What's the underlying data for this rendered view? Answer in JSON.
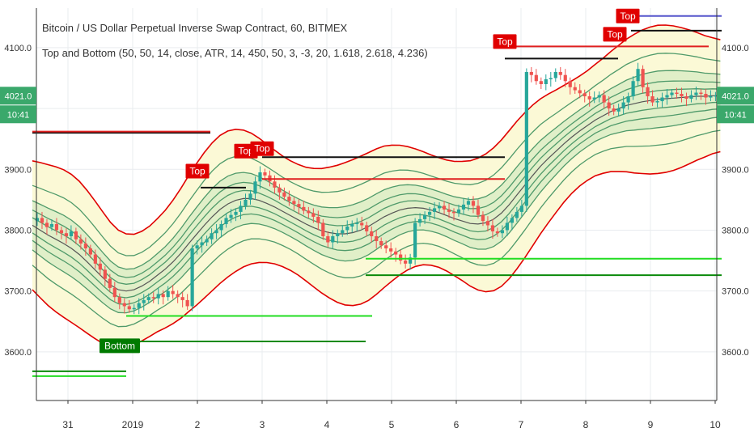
{
  "chart_data": {
    "type": "candlestick",
    "title": "Bitcoin / US Dollar Perpetual Inverse Swap Contract, 60, BITMEX",
    "subtitle": "Top and Bottom (50, 50, 14, close, ATR, 14, 450, 50, 3, -3, 20, 1.618, 2.618, 4.236)",
    "x_labels": [
      "31",
      "2019",
      "2",
      "3",
      "4",
      "5",
      "6",
      "7",
      "8",
      "9",
      "10"
    ],
    "y_ticks": [
      3600,
      3700,
      3800,
      3900,
      4000,
      4100
    ],
    "y_tick_labels": [
      "3600.0",
      "3700.0",
      "3800.0",
      "3900.0",
      "4000.0",
      "4100.0"
    ],
    "ylim": [
      3520,
      4165
    ],
    "price_label": "4021.0",
    "time_label": "10:41",
    "grid": true,
    "signals": [
      {
        "label": "Top",
        "x": 2.0,
        "y": 3885,
        "color": "#e00000"
      },
      {
        "label": "Top",
        "x": 2.75,
        "y": 3918,
        "color": "#e00000"
      },
      {
        "label": "Top",
        "x": 3.0,
        "y": 3922,
        "color": "#e00000"
      },
      {
        "label": "Top",
        "x": 6.75,
        "y": 4098,
        "color": "#e00000"
      },
      {
        "label": "Top",
        "x": 8.45,
        "y": 4110,
        "color": "#e00000"
      },
      {
        "label": "Top",
        "x": 8.65,
        "y": 4140,
        "color": "#e00000"
      },
      {
        "label": "Bottom",
        "x": 0.8,
        "y": 3598,
        "color": "#007a00"
      }
    ],
    "levels": [
      {
        "color": "#111111",
        "y": 3960,
        "x1": -0.55,
        "x2": 2.2
      },
      {
        "color": "#e02020",
        "y": 3962,
        "x1": -0.55,
        "x2": 2.2
      },
      {
        "color": "#111111",
        "y": 3870,
        "x1": 2.05,
        "x2": 2.75
      },
      {
        "color": "#111111",
        "y": 3920,
        "x1": 3.0,
        "x2": 6.75
      },
      {
        "color": "#e02020",
        "y": 3884,
        "x1": 3.0,
        "x2": 6.75
      },
      {
        "color": "#111111",
        "y": 4082,
        "x1": 6.75,
        "x2": 8.5
      },
      {
        "color": "#e02020",
        "y": 4102,
        "x1": 6.85,
        "x2": 9.9
      },
      {
        "color": "#111111",
        "y": 4128,
        "x1": 8.7,
        "x2": 10.1
      },
      {
        "color": "#5555cc",
        "y": 4152,
        "x1": 8.7,
        "x2": 10.1
      },
      {
        "color": "#22dd22",
        "y": 3560,
        "x1": -0.55,
        "x2": 0.9
      },
      {
        "color": "#0a8a0a",
        "y": 3568,
        "x1": -0.55,
        "x2": 0.9
      },
      {
        "color": "#22dd22",
        "y": 3659,
        "x1": 0.9,
        "x2": 4.7
      },
      {
        "color": "#0a8a0a",
        "y": 3617,
        "x1": 0.9,
        "x2": 4.6
      },
      {
        "color": "#22dd22",
        "y": 3753,
        "x1": 4.6,
        "x2": 10.1
      },
      {
        "color": "#0a8a0a",
        "y": 3726,
        "x1": 4.6,
        "x2": 10.1
      }
    ],
    "close": [
      3815,
      3820,
      3812,
      3805,
      3810,
      3800,
      3795,
      3790,
      3798,
      3785,
      3778,
      3770,
      3760,
      3745,
      3735,
      3720,
      3705,
      3690,
      3680,
      3675,
      3670,
      3672,
      3680,
      3685,
      3690,
      3688,
      3695,
      3690,
      3700,
      3695,
      3690,
      3685,
      3675,
      3770,
      3775,
      3780,
      3785,
      3795,
      3800,
      3810,
      3820,
      3825,
      3830,
      3840,
      3850,
      3860,
      3880,
      3895,
      3890,
      3880,
      3870,
      3862,
      3855,
      3848,
      3843,
      3838,
      3832,
      3828,
      3822,
      3812,
      3790,
      3780,
      3790,
      3795,
      3800,
      3806,
      3810,
      3812,
      3808,
      3798,
      3790,
      3782,
      3775,
      3770,
      3765,
      3760,
      3750,
      3745,
      3755,
      3812,
      3818,
      3825,
      3830,
      3836,
      3840,
      3834,
      3830,
      3828,
      3834,
      3842,
      3848,
      3840,
      3825,
      3815,
      3808,
      3798,
      3795,
      3800,
      3812,
      3820,
      3830,
      3840,
      4060,
      4055,
      4045,
      4040,
      4048,
      4050,
      4060,
      4055,
      4045,
      4035,
      4030,
      4025,
      4020,
      4015,
      4018,
      4022,
      4010,
      4000,
      3995,
      4000,
      4010,
      4020,
      4045,
      4065,
      4035,
      4020,
      4010,
      4012,
      4018,
      4022,
      4026,
      4024,
      4020,
      4016,
      4022,
      4026,
      4024,
      4018,
      4020,
      4021
    ],
    "midline": [
      3808,
      3800,
      3792,
      3785,
      3778,
      3770,
      3760,
      3748,
      3735,
      3722,
      3710,
      3702,
      3700,
      3702,
      3708,
      3716,
      3726,
      3736,
      3748,
      3762,
      3778,
      3793,
      3808,
      3822,
      3834,
      3843,
      3849,
      3852,
      3852,
      3849,
      3844,
      3838,
      3831,
      3824,
      3817,
      3810,
      3804,
      3799,
      3796,
      3794,
      3794,
      3796,
      3800,
      3806,
      3814,
      3822,
      3828,
      3833,
      3836,
      3837,
      3836,
      3833,
      3829,
      3824,
      3819,
      3815,
      3811,
      3810,
      3812,
      3818,
      3828,
      3842,
      3858,
      3874,
      3890,
      3905,
      3918,
      3930,
      3942,
      3953,
      3963,
      3972,
      3981,
      3988,
      3995,
      4000,
      4005,
      4008,
      4011,
      4013,
      4015,
      4016,
      4017,
      4018,
      4019,
      4020,
      4020,
      4021,
      4021
    ],
    "band_offsets": [
      0.5,
      1.0,
      1.618,
      2.618,
      4.236
    ],
    "band_unit": 25
  }
}
